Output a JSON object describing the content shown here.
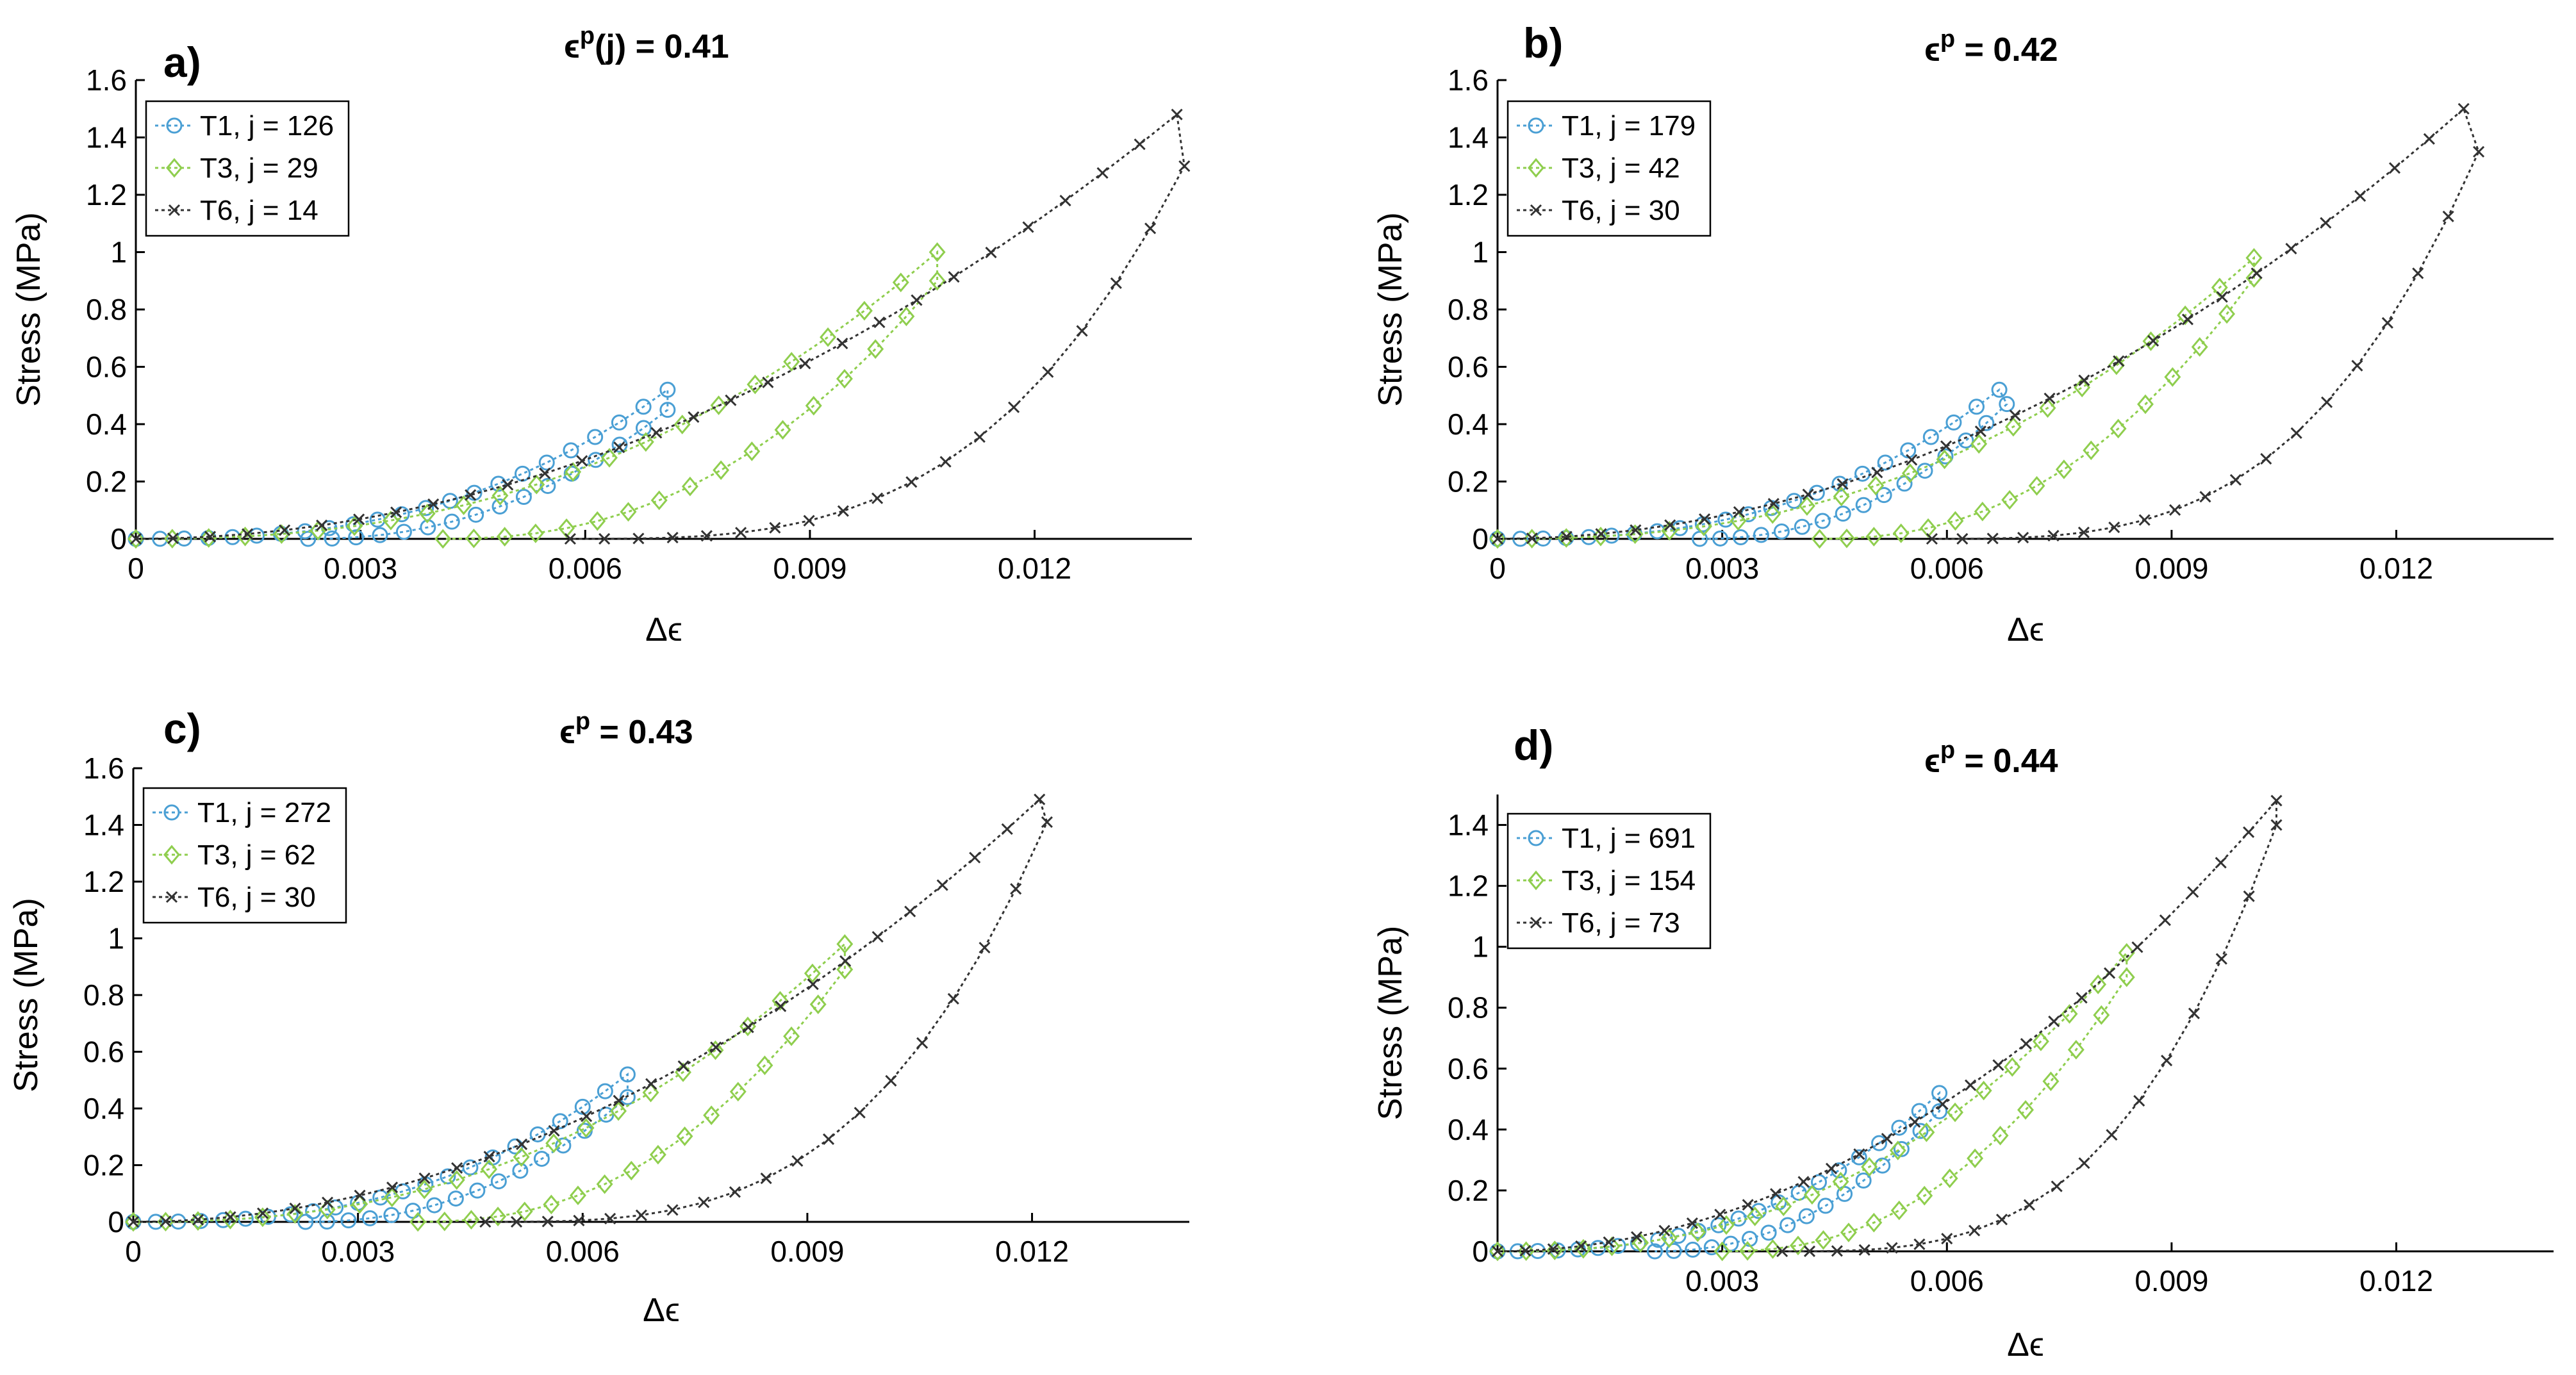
{
  "colors": {
    "T1": "#4a9fd4",
    "T3": "#8fce4e",
    "T6": "#333333"
  },
  "chart_data": [
    {
      "type": "line",
      "panel": "a)",
      "title_prefix": "ϵ",
      "title_sup": "p",
      "title_suffix": "(j) = 0.41",
      "xlabel": "Δϵ",
      "ylabel": "Stress (MPa)",
      "xlim": [
        0,
        0.0141
      ],
      "ylim": [
        0,
        1.6
      ],
      "xticks": [
        "0",
        "0.003",
        "0.006",
        "0.009",
        "0.012"
      ],
      "xtick_values": [
        0,
        0.003,
        0.006,
        0.009,
        0.012
      ],
      "yticks": [
        "0",
        "0.2",
        "0.4",
        "0.6",
        "0.8",
        "1",
        "1.2",
        "1.4",
        "1.6"
      ],
      "ytick_values": [
        0,
        0.2,
        0.4,
        0.6,
        0.8,
        1,
        1.2,
        1.4,
        1.6
      ],
      "legend_position": "top-left",
      "series": [
        {
          "name": "T1, j = 126",
          "marker": "circle",
          "peak": [
            0.0071,
            0.52
          ],
          "drop_end": [
            0.0071,
            0.45
          ],
          "unload_end": [
            0.0023,
            0
          ],
          "load_exp": 2.6,
          "unload_exp": 2.2,
          "n_load": 22,
          "n_unload": 15
        },
        {
          "name": "T3, j = 29",
          "marker": "diamond",
          "peak": [
            0.0107,
            1.0
          ],
          "drop_end": [
            0.0107,
            0.9
          ],
          "unload_end": [
            0.0041,
            0
          ],
          "load_exp": 2.4,
          "unload_exp": 2.3,
          "n_load": 22,
          "n_unload": 16
        },
        {
          "name": "T6, j = 14",
          "marker": "x",
          "peak": [
            0.0139,
            1.48
          ],
          "drop_end": [
            0.014,
            1.3
          ],
          "unload_end": [
            0.0058,
            0
          ],
          "load_exp": 2.0,
          "unload_exp": 3.2,
          "n_load": 28,
          "n_unload": 18
        }
      ]
    },
    {
      "type": "line",
      "panel": "b)",
      "title_prefix": "ϵ",
      "title_sup": "p",
      "title_suffix": " = 0.42",
      "xlabel": "Δϵ",
      "ylabel": "Stress (MPa)",
      "xlim": [
        0,
        0.0141
      ],
      "ylim": [
        0,
        1.6
      ],
      "xticks": [
        "0",
        "0.003",
        "0.006",
        "0.009",
        "0.012"
      ],
      "xtick_values": [
        0,
        0.003,
        0.006,
        0.009,
        0.012
      ],
      "yticks": [
        "0",
        "0.2",
        "0.4",
        "0.6",
        "0.8",
        "1",
        "1.2",
        "1.4",
        "1.6"
      ],
      "ytick_values": [
        0,
        0.2,
        0.4,
        0.6,
        0.8,
        1,
        1.2,
        1.4,
        1.6
      ],
      "legend_position": "top-left",
      "series": [
        {
          "name": "T1, j = 179",
          "marker": "circle",
          "peak": [
            0.0067,
            0.52
          ],
          "drop_end": [
            0.0068,
            0.47
          ],
          "unload_end": [
            0.0027,
            0
          ],
          "load_exp": 2.6,
          "unload_exp": 2.2,
          "n_load": 22,
          "n_unload": 15
        },
        {
          "name": "T3, j = 42",
          "marker": "diamond",
          "peak": [
            0.0101,
            0.98
          ],
          "drop_end": [
            0.0101,
            0.91
          ],
          "unload_end": [
            0.0043,
            0
          ],
          "load_exp": 2.4,
          "unload_exp": 2.3,
          "n_load": 22,
          "n_unload": 16
        },
        {
          "name": "T6, j = 30",
          "marker": "x",
          "peak": [
            0.0129,
            1.5
          ],
          "drop_end": [
            0.0131,
            1.35
          ],
          "unload_end": [
            0.0058,
            0
          ],
          "load_exp": 2.0,
          "unload_exp": 3.2,
          "n_load": 28,
          "n_unload": 18
        }
      ]
    },
    {
      "type": "line",
      "panel": "c)",
      "title_prefix": "ϵ",
      "title_sup": "p",
      "title_suffix": " = 0.43",
      "xlabel": "Δϵ",
      "ylabel": "Stress (MPa)",
      "xlim": [
        0,
        0.0141
      ],
      "ylim": [
        0,
        1.6
      ],
      "xticks": [
        "0",
        "0.003",
        "0.006",
        "0.009",
        "0.012"
      ],
      "xtick_values": [
        0,
        0.003,
        0.006,
        0.009,
        0.012
      ],
      "yticks": [
        "0",
        "0.2",
        "0.4",
        "0.6",
        "0.8",
        "1",
        "1.2",
        "1.4",
        "1.6"
      ],
      "ytick_values": [
        0,
        0.2,
        0.4,
        0.6,
        0.8,
        1,
        1.2,
        1.4,
        1.6
      ],
      "legend_position": "top-left",
      "series": [
        {
          "name": "T1, j = 272",
          "marker": "circle",
          "peak": [
            0.0066,
            0.52
          ],
          "drop_end": [
            0.0066,
            0.44
          ],
          "unload_end": [
            0.0023,
            0
          ],
          "load_exp": 2.6,
          "unload_exp": 2.2,
          "n_load": 22,
          "n_unload": 15
        },
        {
          "name": "T3, j = 62",
          "marker": "diamond",
          "peak": [
            0.0095,
            0.98
          ],
          "drop_end": [
            0.0095,
            0.89
          ],
          "unload_end": [
            0.0038,
            0
          ],
          "load_exp": 2.4,
          "unload_exp": 2.3,
          "n_load": 22,
          "n_unload": 16
        },
        {
          "name": "T6, j = 30",
          "marker": "x",
          "peak": [
            0.0121,
            1.49
          ],
          "drop_end": [
            0.0122,
            1.41
          ],
          "unload_end": [
            0.0047,
            0
          ],
          "load_exp": 2.0,
          "unload_exp": 3.2,
          "n_load": 28,
          "n_unload": 18
        }
      ]
    },
    {
      "type": "line",
      "panel": "d)",
      "title_prefix": "ϵ",
      "title_sup": "p",
      "title_suffix": " = 0.44",
      "xlabel": "Δϵ",
      "ylabel": "Stress (MPa)",
      "xlim": [
        0,
        0.0141
      ],
      "ylim": [
        0,
        1.5
      ],
      "xticks": [
        "0.003",
        "0.006",
        "0.009",
        "0.012"
      ],
      "xtick_values": [
        0.003,
        0.006,
        0.009,
        0.012
      ],
      "yticks": [
        "0",
        "0.2",
        "0.4",
        "0.6",
        "0.8",
        "1",
        "1.2",
        "1.4"
      ],
      "ytick_values": [
        0,
        0.2,
        0.4,
        0.6,
        0.8,
        1,
        1.2,
        1.4
      ],
      "legend_position": "top-left",
      "series": [
        {
          "name": "T1, j = 691",
          "marker": "circle",
          "peak": [
            0.0059,
            0.52
          ],
          "drop_end": [
            0.0059,
            0.46
          ],
          "unload_end": [
            0.0021,
            0
          ],
          "load_exp": 2.6,
          "unload_exp": 2.2,
          "n_load": 22,
          "n_unload": 15
        },
        {
          "name": "T3, j = 154",
          "marker": "diamond",
          "peak": [
            0.0084,
            0.98
          ],
          "drop_end": [
            0.0084,
            0.9
          ],
          "unload_end": [
            0.003,
            0
          ],
          "load_exp": 2.4,
          "unload_exp": 2.3,
          "n_load": 22,
          "n_unload": 16
        },
        {
          "name": "T6, j = 73",
          "marker": "x",
          "peak": [
            0.0104,
            1.48
          ],
          "drop_end": [
            0.0104,
            1.4
          ],
          "unload_end": [
            0.0038,
            0
          ],
          "load_exp": 2.0,
          "unload_exp": 3.2,
          "n_load": 28,
          "n_unload": 18
        }
      ]
    }
  ]
}
